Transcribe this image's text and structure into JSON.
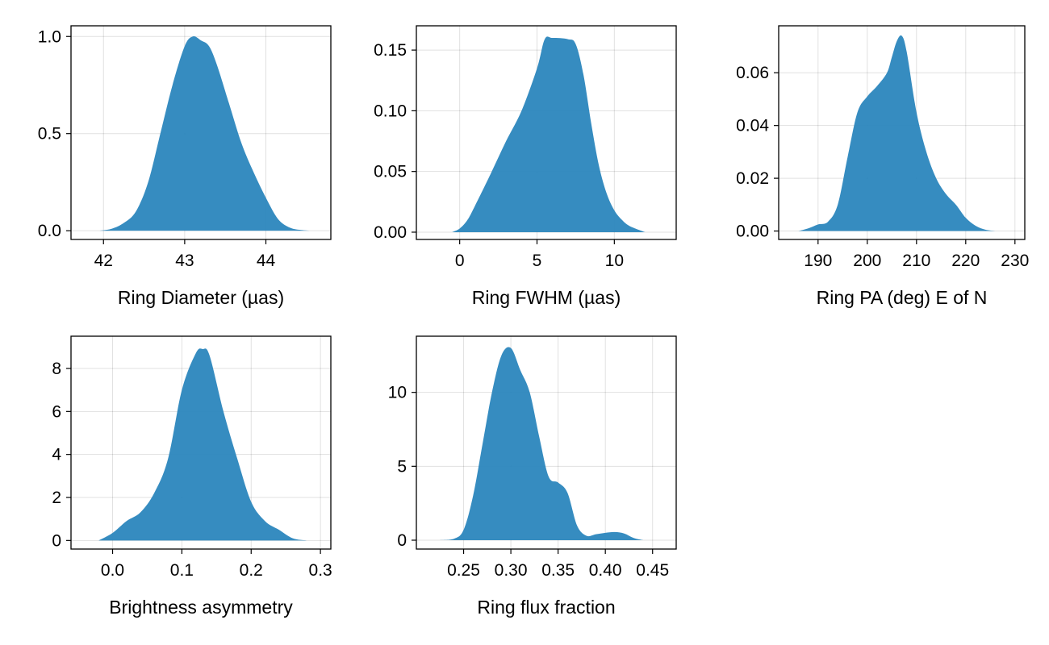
{
  "chart_data": [
    {
      "type": "area",
      "xlabel": "Ring Diameter (µas)",
      "xlim": [
        41.6,
        44.8
      ],
      "ylim": [
        -0.045,
        1.055
      ],
      "xticks": [
        42,
        43,
        44
      ],
      "yticks": [
        0.0,
        0.5,
        1.0
      ],
      "ytick_labels": [
        "0.0",
        "0.5",
        "1.0"
      ],
      "grid": true,
      "color": "#2b86bd",
      "x": [
        41.95,
        42.1,
        42.25,
        42.4,
        42.55,
        42.7,
        42.85,
        43.0,
        43.1,
        43.2,
        43.3,
        43.4,
        43.55,
        43.7,
        43.85,
        44.0,
        44.15,
        44.3,
        44.45,
        44.55
      ],
      "y": [
        0.0,
        0.01,
        0.04,
        0.1,
        0.25,
        0.5,
        0.75,
        0.95,
        1.0,
        0.98,
        0.95,
        0.85,
        0.65,
        0.45,
        0.3,
        0.17,
        0.06,
        0.015,
        0.003,
        0.0
      ]
    },
    {
      "type": "area",
      "xlabel": "Ring FWHM (µas)",
      "xlim": [
        -2.8,
        14.0
      ],
      "ylim": [
        -0.006,
        0.17
      ],
      "xticks": [
        0,
        5,
        10
      ],
      "yticks": [
        0.0,
        0.05,
        0.1,
        0.15
      ],
      "ytick_labels": [
        "0.00",
        "0.05",
        "0.10",
        "0.15"
      ],
      "grid": true,
      "color": "#2b86bd",
      "x": [
        -0.5,
        0.0,
        0.5,
        1.0,
        2.0,
        3.0,
        4.0,
        5.0,
        5.5,
        6.0,
        7.0,
        7.5,
        8.0,
        8.5,
        9.0,
        9.5,
        10.0,
        10.5,
        11.0,
        12.0
      ],
      "y": [
        0.0,
        0.003,
        0.01,
        0.022,
        0.048,
        0.075,
        0.1,
        0.135,
        0.159,
        0.16,
        0.159,
        0.155,
        0.13,
        0.09,
        0.055,
        0.032,
        0.018,
        0.01,
        0.005,
        0.0
      ]
    },
    {
      "type": "area",
      "xlabel": "Ring PA (deg) E of N",
      "xlim": [
        182,
        232
      ],
      "ylim": [
        -0.0032,
        0.0778
      ],
      "xticks": [
        190,
        200,
        210,
        220,
        230
      ],
      "yticks": [
        0.0,
        0.02,
        0.04,
        0.06
      ],
      "ytick_labels": [
        "0.00",
        "0.02",
        "0.04",
        "0.06"
      ],
      "grid": true,
      "color": "#2b86bd",
      "x": [
        186,
        188,
        190,
        192,
        194,
        196,
        198,
        200,
        202,
        204,
        205,
        206,
        207,
        208,
        210,
        212,
        214,
        216,
        218,
        220,
        222,
        224,
        226
      ],
      "y": [
        0.0,
        0.001,
        0.0025,
        0.0035,
        0.01,
        0.028,
        0.045,
        0.051,
        0.055,
        0.06,
        0.066,
        0.072,
        0.074,
        0.068,
        0.045,
        0.03,
        0.02,
        0.014,
        0.01,
        0.005,
        0.002,
        0.0005,
        0.0
      ]
    },
    {
      "type": "area",
      "xlabel": "Brightness asymmetry",
      "xlim": [
        -0.06,
        0.315
      ],
      "ylim": [
        -0.4,
        9.5
      ],
      "xticks": [
        0.0,
        0.1,
        0.2,
        0.3
      ],
      "xtick_labels": [
        "0.0",
        "0.1",
        "0.2",
        "0.3"
      ],
      "yticks": [
        0,
        2,
        4,
        6,
        8
      ],
      "grid": true,
      "color": "#2b86bd",
      "x": [
        -0.02,
        0.0,
        0.02,
        0.04,
        0.06,
        0.08,
        0.1,
        0.12,
        0.13,
        0.14,
        0.16,
        0.18,
        0.2,
        0.22,
        0.24,
        0.26,
        0.28
      ],
      "y": [
        0.0,
        0.35,
        0.9,
        1.3,
        2.2,
        3.8,
        7.0,
        8.7,
        8.9,
        8.6,
        6.0,
        3.8,
        1.8,
        0.9,
        0.5,
        0.1,
        0.0
      ]
    },
    {
      "type": "area",
      "xlabel": "Ring flux fraction",
      "xlim": [
        0.2,
        0.475
      ],
      "ylim": [
        -0.6,
        13.8
      ],
      "xticks": [
        0.25,
        0.3,
        0.35,
        0.4,
        0.45
      ],
      "xtick_labels": [
        "0.25",
        "0.30",
        "0.35",
        "0.40",
        "0.45"
      ],
      "yticks": [
        0,
        5,
        10
      ],
      "grid": true,
      "color": "#2b86bd",
      "x": [
        0.225,
        0.24,
        0.25,
        0.26,
        0.27,
        0.28,
        0.29,
        0.3,
        0.31,
        0.32,
        0.33,
        0.34,
        0.35,
        0.36,
        0.37,
        0.38,
        0.39,
        0.4,
        0.41,
        0.42,
        0.43,
        0.44
      ],
      "y": [
        0.0,
        0.1,
        0.7,
        3.0,
        6.5,
        10.0,
        12.5,
        13.0,
        11.5,
        10.0,
        7.0,
        4.3,
        3.9,
        3.2,
        1.0,
        0.3,
        0.4,
        0.5,
        0.55,
        0.45,
        0.15,
        0.0
      ]
    }
  ]
}
